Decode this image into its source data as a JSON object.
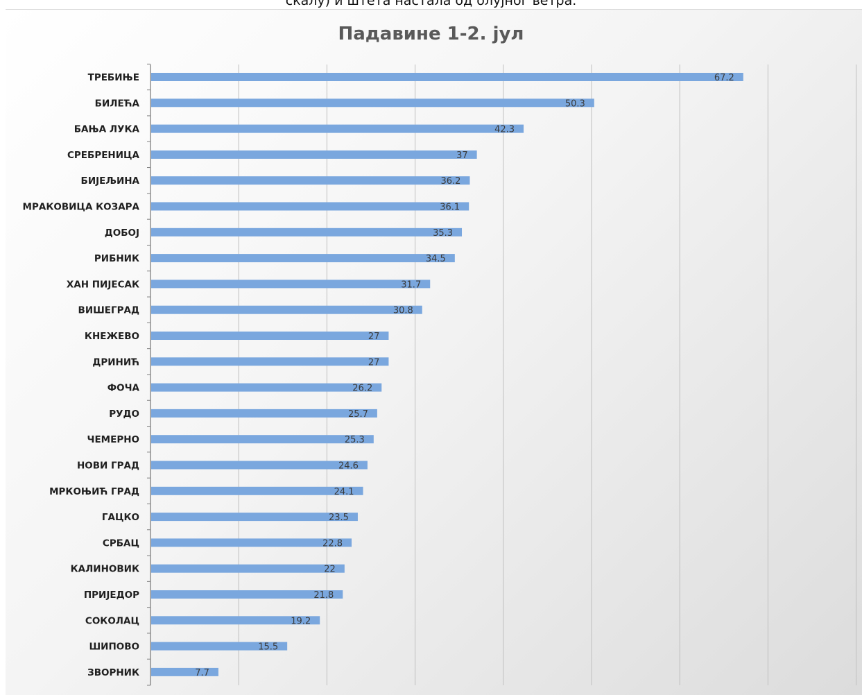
{
  "caption": "скалу) и штета настала од олујног ветра.",
  "chart_data": {
    "type": "bar",
    "orientation": "horizontal",
    "title": "Падавине 1-2. јул",
    "categories": [
      "ТРЕБИЊЕ",
      "БИЛЕЋА",
      "БАЊА ЛУКА",
      "СРЕБРЕНИЦА",
      "БИЈЕЉИНА",
      "МРАКОВИЦА КОЗАРА",
      "ДОБОЈ",
      "РИБНИК",
      "ХАН ПИЈЕСАК",
      "ВИШЕГРАД",
      "КНЕЖЕВО",
      "ДРИНИЋ",
      "ФОЧА",
      "РУДО",
      "ЧЕМЕРНО",
      "НОВИ ГРАД",
      "МРКОЊИЋ ГРАД",
      "ГАЦКО",
      "СРБАЦ",
      "КАЛИНОВИК",
      "ПРИЈЕДОР",
      "СОКОЛАЦ",
      "ШИПОВО",
      "ЗВОРНИК"
    ],
    "values": [
      67.2,
      50.3,
      42.3,
      37,
      36.2,
      36.1,
      35.3,
      34.5,
      31.7,
      30.8,
      27,
      27,
      26.2,
      25.7,
      25.3,
      24.6,
      24.1,
      23.5,
      22.8,
      22,
      21.8,
      19.2,
      15.5,
      7.7
    ],
    "value_labels": [
      "67.2",
      "50.3",
      "42.3",
      "37",
      "36.2",
      "36.1",
      "35.3",
      "34.5",
      "31.7",
      "30.8",
      "27",
      "27",
      "26.2",
      "25.7",
      "25.3",
      "24.6",
      "24.1",
      "23.5",
      "22.8",
      "22",
      "21.8",
      "19.2",
      "15.5",
      "7.7"
    ],
    "xlim": [
      0,
      80
    ],
    "x_gridlines": [
      0,
      10,
      20,
      30,
      40,
      50,
      60,
      70,
      80
    ],
    "grid": true,
    "bar_color": "#7aa7de",
    "legend": "none"
  }
}
